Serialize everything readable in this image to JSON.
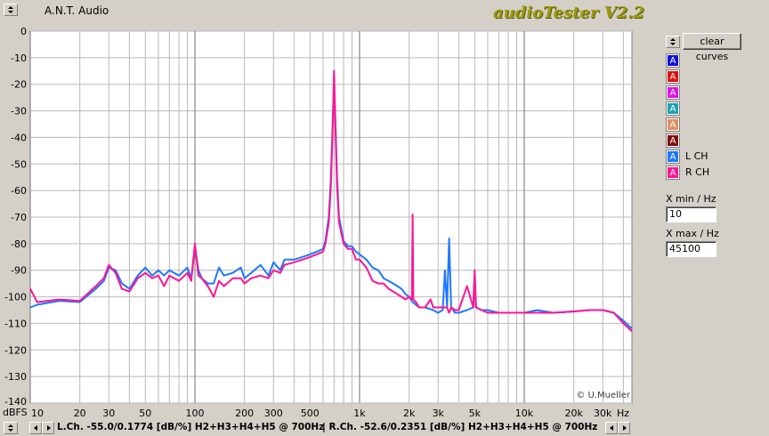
{
  "app": {
    "name": "A.N.T. Audio",
    "brand": "audioTester V2.2",
    "credit": "© U.Mueller"
  },
  "controls": {
    "clear_label": "clear curves",
    "chip_glyph": "A",
    "chips": [
      {
        "color": "#1010e0",
        "label": ""
      },
      {
        "color": "#e01010",
        "label": ""
      },
      {
        "color": "#e010e0",
        "label": ""
      },
      {
        "color": "#20a0b0",
        "label": ""
      },
      {
        "color": "#e09060",
        "label": ""
      },
      {
        "color": "#801010",
        "label": ""
      },
      {
        "color": "#1e78ff",
        "label": "L CH"
      },
      {
        "color": "#ff1493",
        "label": "R CH"
      }
    ],
    "xmin_label": "X min / Hz",
    "xmin_value": "10",
    "xmax_label": "X max / Hz",
    "xmax_value": "45100"
  },
  "status": {
    "left": "L.Ch. -55.0/0.1774 [dB/%] H2+H3+H4+H5 @ 700Hz",
    "right": "| R.Ch. -52.6/0.2351 [dB/%] H2+H3+H4+H5 @ 700Hz"
  },
  "chart_data": {
    "type": "line",
    "title": "",
    "xlabel": "Hz",
    "ylabel": "dBFS",
    "x_scale": "log",
    "xlim": [
      10,
      45100
    ],
    "ylim": [
      -140,
      0
    ],
    "grid": true,
    "x_ticks": [
      10,
      20,
      30,
      50,
      100,
      200,
      300,
      500,
      1000,
      2000,
      3000,
      5000,
      10000,
      20000,
      30000
    ],
    "x_tick_labels": [
      "10",
      "20",
      "30",
      "50",
      "100",
      "200",
      "300",
      "500",
      "1k",
      "2k",
      "3k",
      "5k",
      "10k",
      "20k",
      "30k"
    ],
    "y_ticks": [
      0,
      -10,
      -20,
      -30,
      -40,
      -50,
      -60,
      -70,
      -80,
      -90,
      -100,
      -110,
      -120,
      -130,
      -140
    ],
    "series": [
      {
        "name": "L CH",
        "color": "#1e78ff",
        "x": [
          10,
          11,
          15,
          20,
          25,
          28,
          30,
          33,
          36,
          40,
          45,
          50,
          55,
          60,
          65,
          70,
          80,
          90,
          95,
          100,
          105,
          110,
          120,
          130,
          140,
          150,
          170,
          190,
          200,
          220,
          250,
          280,
          300,
          330,
          350,
          400,
          450,
          500,
          550,
          600,
          620,
          650,
          670,
          690,
          700,
          710,
          730,
          750,
          800,
          850,
          900,
          950,
          1000,
          1100,
          1200,
          1300,
          1400,
          1500,
          1600,
          1800,
          1900,
          2000,
          2100,
          2200,
          2300,
          2500,
          2800,
          3000,
          3200,
          3300,
          3400,
          3500,
          3600,
          3800,
          4000,
          4500,
          4900,
          5000,
          5100,
          5500,
          6000,
          7000,
          8000,
          9000,
          10000,
          12000,
          15000,
          20000,
          25000,
          30000,
          35000,
          40000,
          45100
        ],
        "y": [
          -104,
          -103,
          -101.5,
          -102,
          -97,
          -94,
          -89,
          -90,
          -95,
          -97,
          -92,
          -89,
          -92,
          -90,
          -92,
          -90,
          -92,
          -89,
          -93,
          -81,
          -90,
          -93,
          -95,
          -95,
          -89,
          -92,
          -91,
          -89,
          -93,
          -91,
          -88,
          -92,
          -87,
          -90,
          -86,
          -86,
          -85,
          -84,
          -83,
          -82,
          -79,
          -70,
          -55,
          -30,
          -17,
          -30,
          -55,
          -70,
          -79,
          -81,
          -81,
          -83,
          -84,
          -86,
          -89,
          -90,
          -93,
          -94,
          -95,
          -97,
          -99,
          -100,
          -102,
          -103,
          -104,
          -104,
          -105,
          -106,
          -105,
          -90,
          -104,
          -78,
          -104,
          -106,
          -106,
          -105,
          -104,
          -93,
          -104,
          -105,
          -105,
          -106,
          -106,
          -106,
          -106,
          -105,
          -106,
          -105.5,
          -105,
          -105,
          -106,
          -109,
          -112
        ]
      },
      {
        "name": "R CH",
        "color": "#ff1493",
        "x": [
          10,
          11,
          15,
          20,
          25,
          28,
          30,
          33,
          36,
          40,
          45,
          50,
          55,
          60,
          65,
          70,
          80,
          90,
          95,
          100,
          105,
          110,
          120,
          130,
          140,
          150,
          170,
          190,
          200,
          220,
          250,
          280,
          300,
          330,
          350,
          400,
          450,
          500,
          550,
          600,
          620,
          650,
          670,
          690,
          700,
          710,
          730,
          750,
          800,
          850,
          900,
          950,
          1000,
          1100,
          1200,
          1300,
          1400,
          1500,
          1600,
          1800,
          1900,
          2000,
          2080,
          2100,
          2120,
          2200,
          2300,
          2500,
          2700,
          2800,
          2900,
          3000,
          3200,
          3400,
          3500,
          3600,
          3800,
          4000,
          4500,
          4900,
          5000,
          5100,
          5500,
          6000,
          7000,
          8000,
          9000,
          10000,
          12000,
          15000,
          20000,
          25000,
          30000,
          35000,
          40000,
          45100
        ],
        "y": [
          -97,
          -102,
          -101,
          -101.5,
          -96,
          -93,
          -88,
          -91,
          -97,
          -98,
          -93,
          -91,
          -93,
          -92,
          -96,
          -92,
          -94,
          -91,
          -94,
          -80,
          -92,
          -93,
          -96,
          -100,
          -94,
          -96,
          -93,
          -93,
          -95,
          -93,
          -92,
          -93,
          -90,
          -91,
          -88,
          -87,
          -86,
          -85,
          -84,
          -83,
          -80,
          -72,
          -58,
          -32,
          -15,
          -32,
          -58,
          -72,
          -80,
          -82,
          -82,
          -86,
          -86,
          -89,
          -94,
          -95,
          -95,
          -97,
          -98,
          -100,
          -101,
          -100,
          -101,
          -69,
          -101,
          -102,
          -104,
          -104,
          -101,
          -104,
          -104,
          -104,
          -104,
          -104,
          -106,
          -104,
          -105,
          -105,
          -96,
          -104,
          -90,
          -104,
          -105,
          -106,
          -106,
          -106,
          -106,
          -106,
          -106,
          -106,
          -105.5,
          -105,
          -105,
          -106,
          -110,
          -113
        ]
      }
    ]
  }
}
